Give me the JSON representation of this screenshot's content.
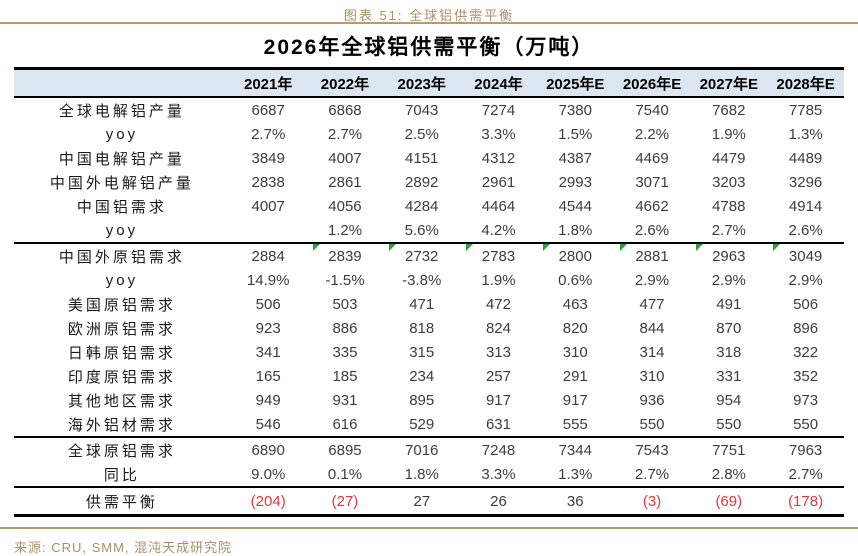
{
  "caption": "图表 51: 全球铝供需平衡",
  "title": "2026年全球铝供需平衡（万吨）",
  "source": "来源: CRU, SMM, 混沌天成研究院",
  "colors": {
    "accent_gold": "#b49a6d",
    "header_bg": "#dce6f1",
    "negative_red": "#e8363c",
    "comment_marker_green": "#2f9e44",
    "border_black": "#000000"
  },
  "chart_data": {
    "type": "table",
    "title": "2026年全球铝供需平衡（万吨）",
    "columns": [
      "2021年",
      "2022年",
      "2023年",
      "2024年",
      "2025年E",
      "2026年E",
      "2027年E",
      "2028年E"
    ],
    "rows": [
      {
        "label": "全球电解铝产量",
        "values": [
          "6687",
          "6868",
          "7043",
          "7274",
          "7380",
          "7540",
          "7682",
          "7785"
        ]
      },
      {
        "label": "yoy",
        "values": [
          "2.7%",
          "2.7%",
          "2.5%",
          "3.3%",
          "1.5%",
          "2.2%",
          "1.9%",
          "1.3%"
        ]
      },
      {
        "label": "中国电解铝产量",
        "values": [
          "3849",
          "4007",
          "4151",
          "4312",
          "4387",
          "4469",
          "4479",
          "4489"
        ]
      },
      {
        "label": "中国外电解铝产量",
        "values": [
          "2838",
          "2861",
          "2892",
          "2961",
          "2993",
          "3071",
          "3203",
          "3296"
        ]
      },
      {
        "label": "中国铝需求",
        "values": [
          "4007",
          "4056",
          "4284",
          "4464",
          "4544",
          "4662",
          "4788",
          "4914"
        ]
      },
      {
        "label": "yoy",
        "values": [
          "",
          "1.2%",
          "5.6%",
          "4.2%",
          "1.8%",
          "2.6%",
          "2.7%",
          "2.6%"
        ]
      },
      {
        "label": "中国外原铝需求",
        "section_start": true,
        "values": [
          "2884",
          "2839",
          "2732",
          "2783",
          "2800",
          "2881",
          "2963",
          "3049"
        ],
        "comment_markers": [
          false,
          true,
          true,
          true,
          true,
          true,
          true,
          true
        ]
      },
      {
        "label": "yoy",
        "values": [
          "14.9%",
          "-1.5%",
          "-3.8%",
          "1.9%",
          "0.6%",
          "2.9%",
          "2.9%",
          "2.9%"
        ]
      },
      {
        "label": "美国原铝需求",
        "values": [
          "506",
          "503",
          "471",
          "472",
          "463",
          "477",
          "491",
          "506"
        ]
      },
      {
        "label": "欧洲原铝需求",
        "values": [
          "923",
          "886",
          "818",
          "824",
          "820",
          "844",
          "870",
          "896"
        ]
      },
      {
        "label": "日韩原铝需求",
        "values": [
          "341",
          "335",
          "315",
          "313",
          "310",
          "314",
          "318",
          "322"
        ]
      },
      {
        "label": "印度原铝需求",
        "values": [
          "165",
          "185",
          "234",
          "257",
          "291",
          "310",
          "331",
          "352"
        ]
      },
      {
        "label": "其他地区需求",
        "values": [
          "949",
          "931",
          "895",
          "917",
          "917",
          "936",
          "954",
          "973"
        ]
      },
      {
        "label": "海外铝材需求",
        "values": [
          "546",
          "616",
          "529",
          "631",
          "555",
          "550",
          "550",
          "550"
        ]
      },
      {
        "label": "全球原铝需求",
        "section_start": true,
        "values": [
          "6890",
          "6895",
          "7016",
          "7248",
          "7344",
          "7543",
          "7751",
          "7963"
        ]
      },
      {
        "label": "同比",
        "values": [
          "9.0%",
          "0.1%",
          "1.8%",
          "3.3%",
          "1.3%",
          "2.7%",
          "2.8%",
          "2.7%"
        ]
      },
      {
        "label": "供需平衡",
        "section_start": true,
        "balance": true,
        "values": [
          "(204)",
          "(27)",
          "27",
          "26",
          "36",
          "(3)",
          "(69)",
          "(178)"
        ],
        "negative": [
          true,
          true,
          false,
          false,
          false,
          true,
          true,
          true
        ]
      }
    ]
  }
}
